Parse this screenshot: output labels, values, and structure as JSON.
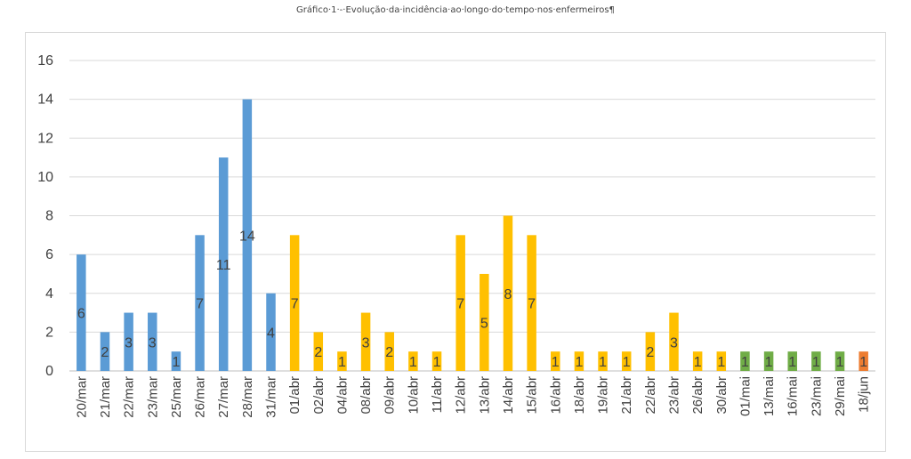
{
  "chart_data": {
    "type": "bar",
    "title": "Gráfico·1·-·Evolução·da·incidência·ao·longo·do·tempo·nos·enfermeiros¶",
    "categories": [
      "20/mar",
      "21/mar",
      "22/mar",
      "23/mar",
      "25/mar",
      "26/mar",
      "27/mar",
      "28/mar",
      "31/mar",
      "01/abr",
      "02/abr",
      "04/abr",
      "08/abr",
      "09/abr",
      "10/abr",
      "11/abr",
      "12/abr",
      "13/abr",
      "14/abr",
      "15/abr",
      "16/abr",
      "18/abr",
      "19/abr",
      "21/abr",
      "22/abr",
      "23/abr",
      "26/abr",
      "30/abr",
      "01/mai",
      "13/mai",
      "16/mai",
      "23/mai",
      "29/mai",
      "18/jun"
    ],
    "values": [
      6,
      2,
      3,
      3,
      1,
      7,
      11,
      14,
      4,
      7,
      2,
      1,
      3,
      2,
      1,
      1,
      7,
      5,
      8,
      7,
      1,
      1,
      1,
      1,
      2,
      3,
      1,
      1,
      1,
      1,
      1,
      1,
      1,
      1
    ],
    "bar_colors": [
      "#5b9bd5",
      "#5b9bd5",
      "#5b9bd5",
      "#5b9bd5",
      "#5b9bd5",
      "#5b9bd5",
      "#5b9bd5",
      "#5b9bd5",
      "#5b9bd5",
      "#ffc000",
      "#ffc000",
      "#ffc000",
      "#ffc000",
      "#ffc000",
      "#ffc000",
      "#ffc000",
      "#ffc000",
      "#ffc000",
      "#ffc000",
      "#ffc000",
      "#ffc000",
      "#ffc000",
      "#ffc000",
      "#ffc000",
      "#ffc000",
      "#ffc000",
      "#ffc000",
      "#ffc000",
      "#70ad47",
      "#70ad47",
      "#70ad47",
      "#70ad47",
      "#70ad47",
      "#ed7d31"
    ],
    "ylim": [
      0,
      16
    ],
    "yticks": [
      0,
      2,
      4,
      6,
      8,
      10,
      12,
      14,
      16
    ],
    "grid": true,
    "xlabel": "",
    "ylabel": ""
  }
}
